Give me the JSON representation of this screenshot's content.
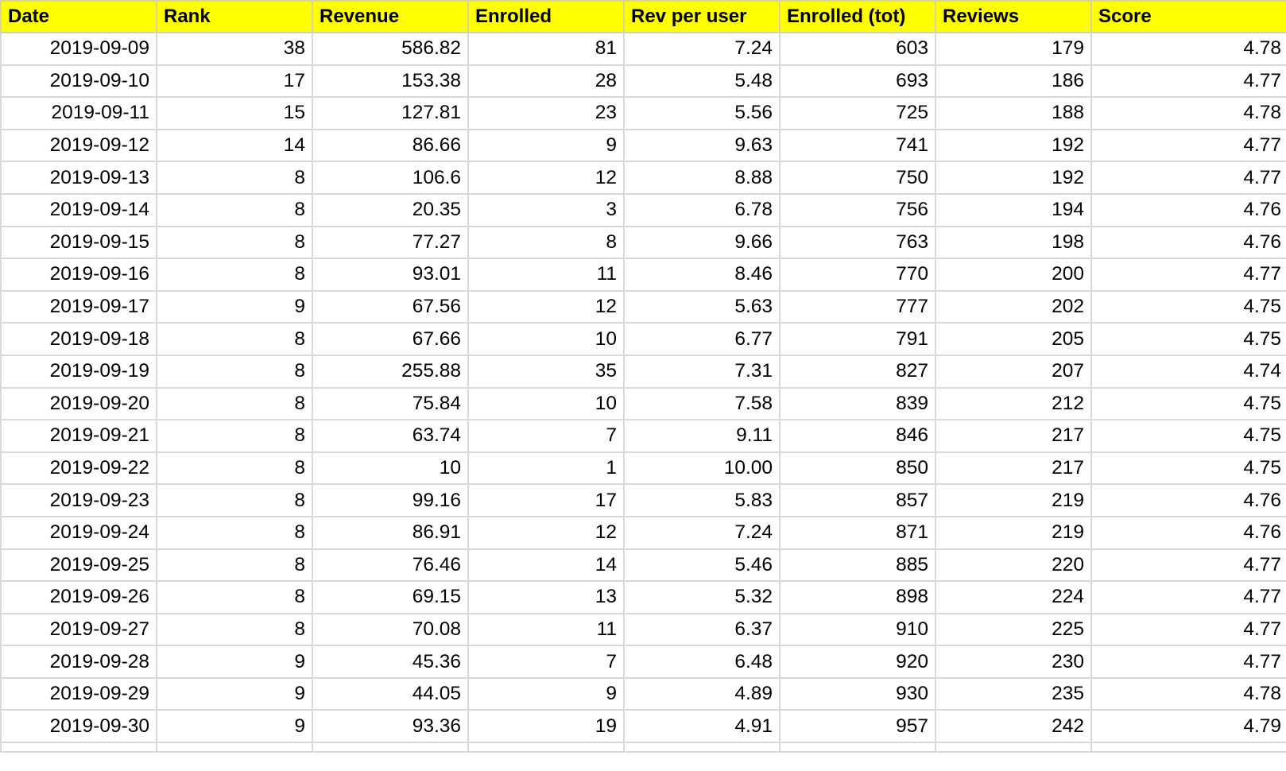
{
  "table": {
    "headers": [
      "Date",
      "Rank",
      "Revenue",
      "Enrolled",
      "Rev per user",
      "Enrolled (tot)",
      "Reviews",
      "Score"
    ],
    "rows": [
      [
        "2019-09-09",
        "38",
        "586.82",
        "81",
        "7.24",
        "603",
        "179",
        "4.78"
      ],
      [
        "2019-09-10",
        "17",
        "153.38",
        "28",
        "5.48",
        "693",
        "186",
        "4.77"
      ],
      [
        "2019-09-11",
        "15",
        "127.81",
        "23",
        "5.56",
        "725",
        "188",
        "4.78"
      ],
      [
        "2019-09-12",
        "14",
        "86.66",
        "9",
        "9.63",
        "741",
        "192",
        "4.77"
      ],
      [
        "2019-09-13",
        "8",
        "106.6",
        "12",
        "8.88",
        "750",
        "192",
        "4.77"
      ],
      [
        "2019-09-14",
        "8",
        "20.35",
        "3",
        "6.78",
        "756",
        "194",
        "4.76"
      ],
      [
        "2019-09-15",
        "8",
        "77.27",
        "8",
        "9.66",
        "763",
        "198",
        "4.76"
      ],
      [
        "2019-09-16",
        "8",
        "93.01",
        "11",
        "8.46",
        "770",
        "200",
        "4.77"
      ],
      [
        "2019-09-17",
        "9",
        "67.56",
        "12",
        "5.63",
        "777",
        "202",
        "4.75"
      ],
      [
        "2019-09-18",
        "8",
        "67.66",
        "10",
        "6.77",
        "791",
        "205",
        "4.75"
      ],
      [
        "2019-09-19",
        "8",
        "255.88",
        "35",
        "7.31",
        "827",
        "207",
        "4.74"
      ],
      [
        "2019-09-20",
        "8",
        "75.84",
        "10",
        "7.58",
        "839",
        "212",
        "4.75"
      ],
      [
        "2019-09-21",
        "8",
        "63.74",
        "7",
        "9.11",
        "846",
        "217",
        "4.75"
      ],
      [
        "2019-09-22",
        "8",
        "10",
        "1",
        "10.00",
        "850",
        "217",
        "4.75"
      ],
      [
        "2019-09-23",
        "8",
        "99.16",
        "17",
        "5.83",
        "857",
        "219",
        "4.76"
      ],
      [
        "2019-09-24",
        "8",
        "86.91",
        "12",
        "7.24",
        "871",
        "219",
        "4.76"
      ],
      [
        "2019-09-25",
        "8",
        "76.46",
        "14",
        "5.46",
        "885",
        "220",
        "4.77"
      ],
      [
        "2019-09-26",
        "8",
        "69.15",
        "13",
        "5.32",
        "898",
        "224",
        "4.77"
      ],
      [
        "2019-09-27",
        "8",
        "70.08",
        "11",
        "6.37",
        "910",
        "225",
        "4.77"
      ],
      [
        "2019-09-28",
        "9",
        "45.36",
        "7",
        "6.48",
        "920",
        "230",
        "4.77"
      ],
      [
        "2019-09-29",
        "9",
        "44.05",
        "9",
        "4.89",
        "930",
        "235",
        "4.78"
      ],
      [
        "2019-09-30",
        "9",
        "93.36",
        "19",
        "4.91",
        "957",
        "242",
        "4.79"
      ]
    ]
  },
  "colors": {
    "header_background": "#ffff00",
    "grid_line": "#d9d9d9",
    "text": "#000000"
  }
}
